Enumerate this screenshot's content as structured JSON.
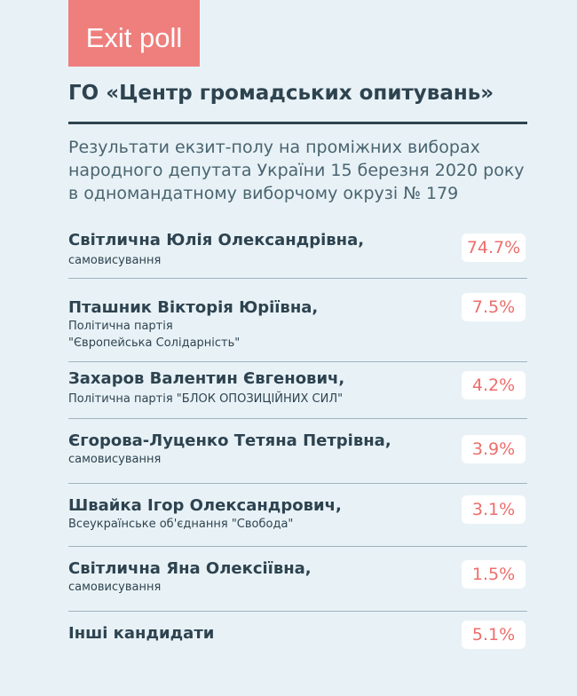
{
  "badge": "Exit poll",
  "org": "ГО «Центр громадських опитувань»",
  "subtitle": "Результати екзит-полу на проміжних виборах народного депутата України 15 березня 2020 року в одномандатному виборчому окрузі № 179",
  "chart_data": {
    "type": "table",
    "rows": [
      {
        "name": "Світлична Юлія Олександрівна,",
        "affiliation": [
          "самовисування"
        ],
        "value": 74.7,
        "label": "74.7%"
      },
      {
        "name": "Пташник Вікторія Юріївна,",
        "affiliation": [
          "Політична партія",
          "\"Європейська Солідарність\""
        ],
        "value": 7.5,
        "label": "7.5%"
      },
      {
        "name": "Захаров Валентин Євгенович,",
        "affiliation": [
          "Політична партія \"БЛОК ОПОЗИЦІЙНИХ СИЛ\""
        ],
        "value": 4.2,
        "label": "4.2%"
      },
      {
        "name": "Єгорова-Луценко Тетяна Петрівна,",
        "affiliation": [
          "самовисування"
        ],
        "value": 3.9,
        "label": "3.9%"
      },
      {
        "name": "Швайка Ігор Олександрович,",
        "affiliation": [
          "Всеукраїнське об'єднання \"Свобода\""
        ],
        "value": 3.1,
        "label": "3.1%"
      },
      {
        "name": "Світлична Яна Олексіївна,",
        "affiliation": [
          "самовисування"
        ],
        "value": 1.5,
        "label": "1.5%"
      },
      {
        "name": "Інші кандидати",
        "affiliation": [],
        "value": 5.1,
        "label": "5.1%"
      }
    ]
  }
}
